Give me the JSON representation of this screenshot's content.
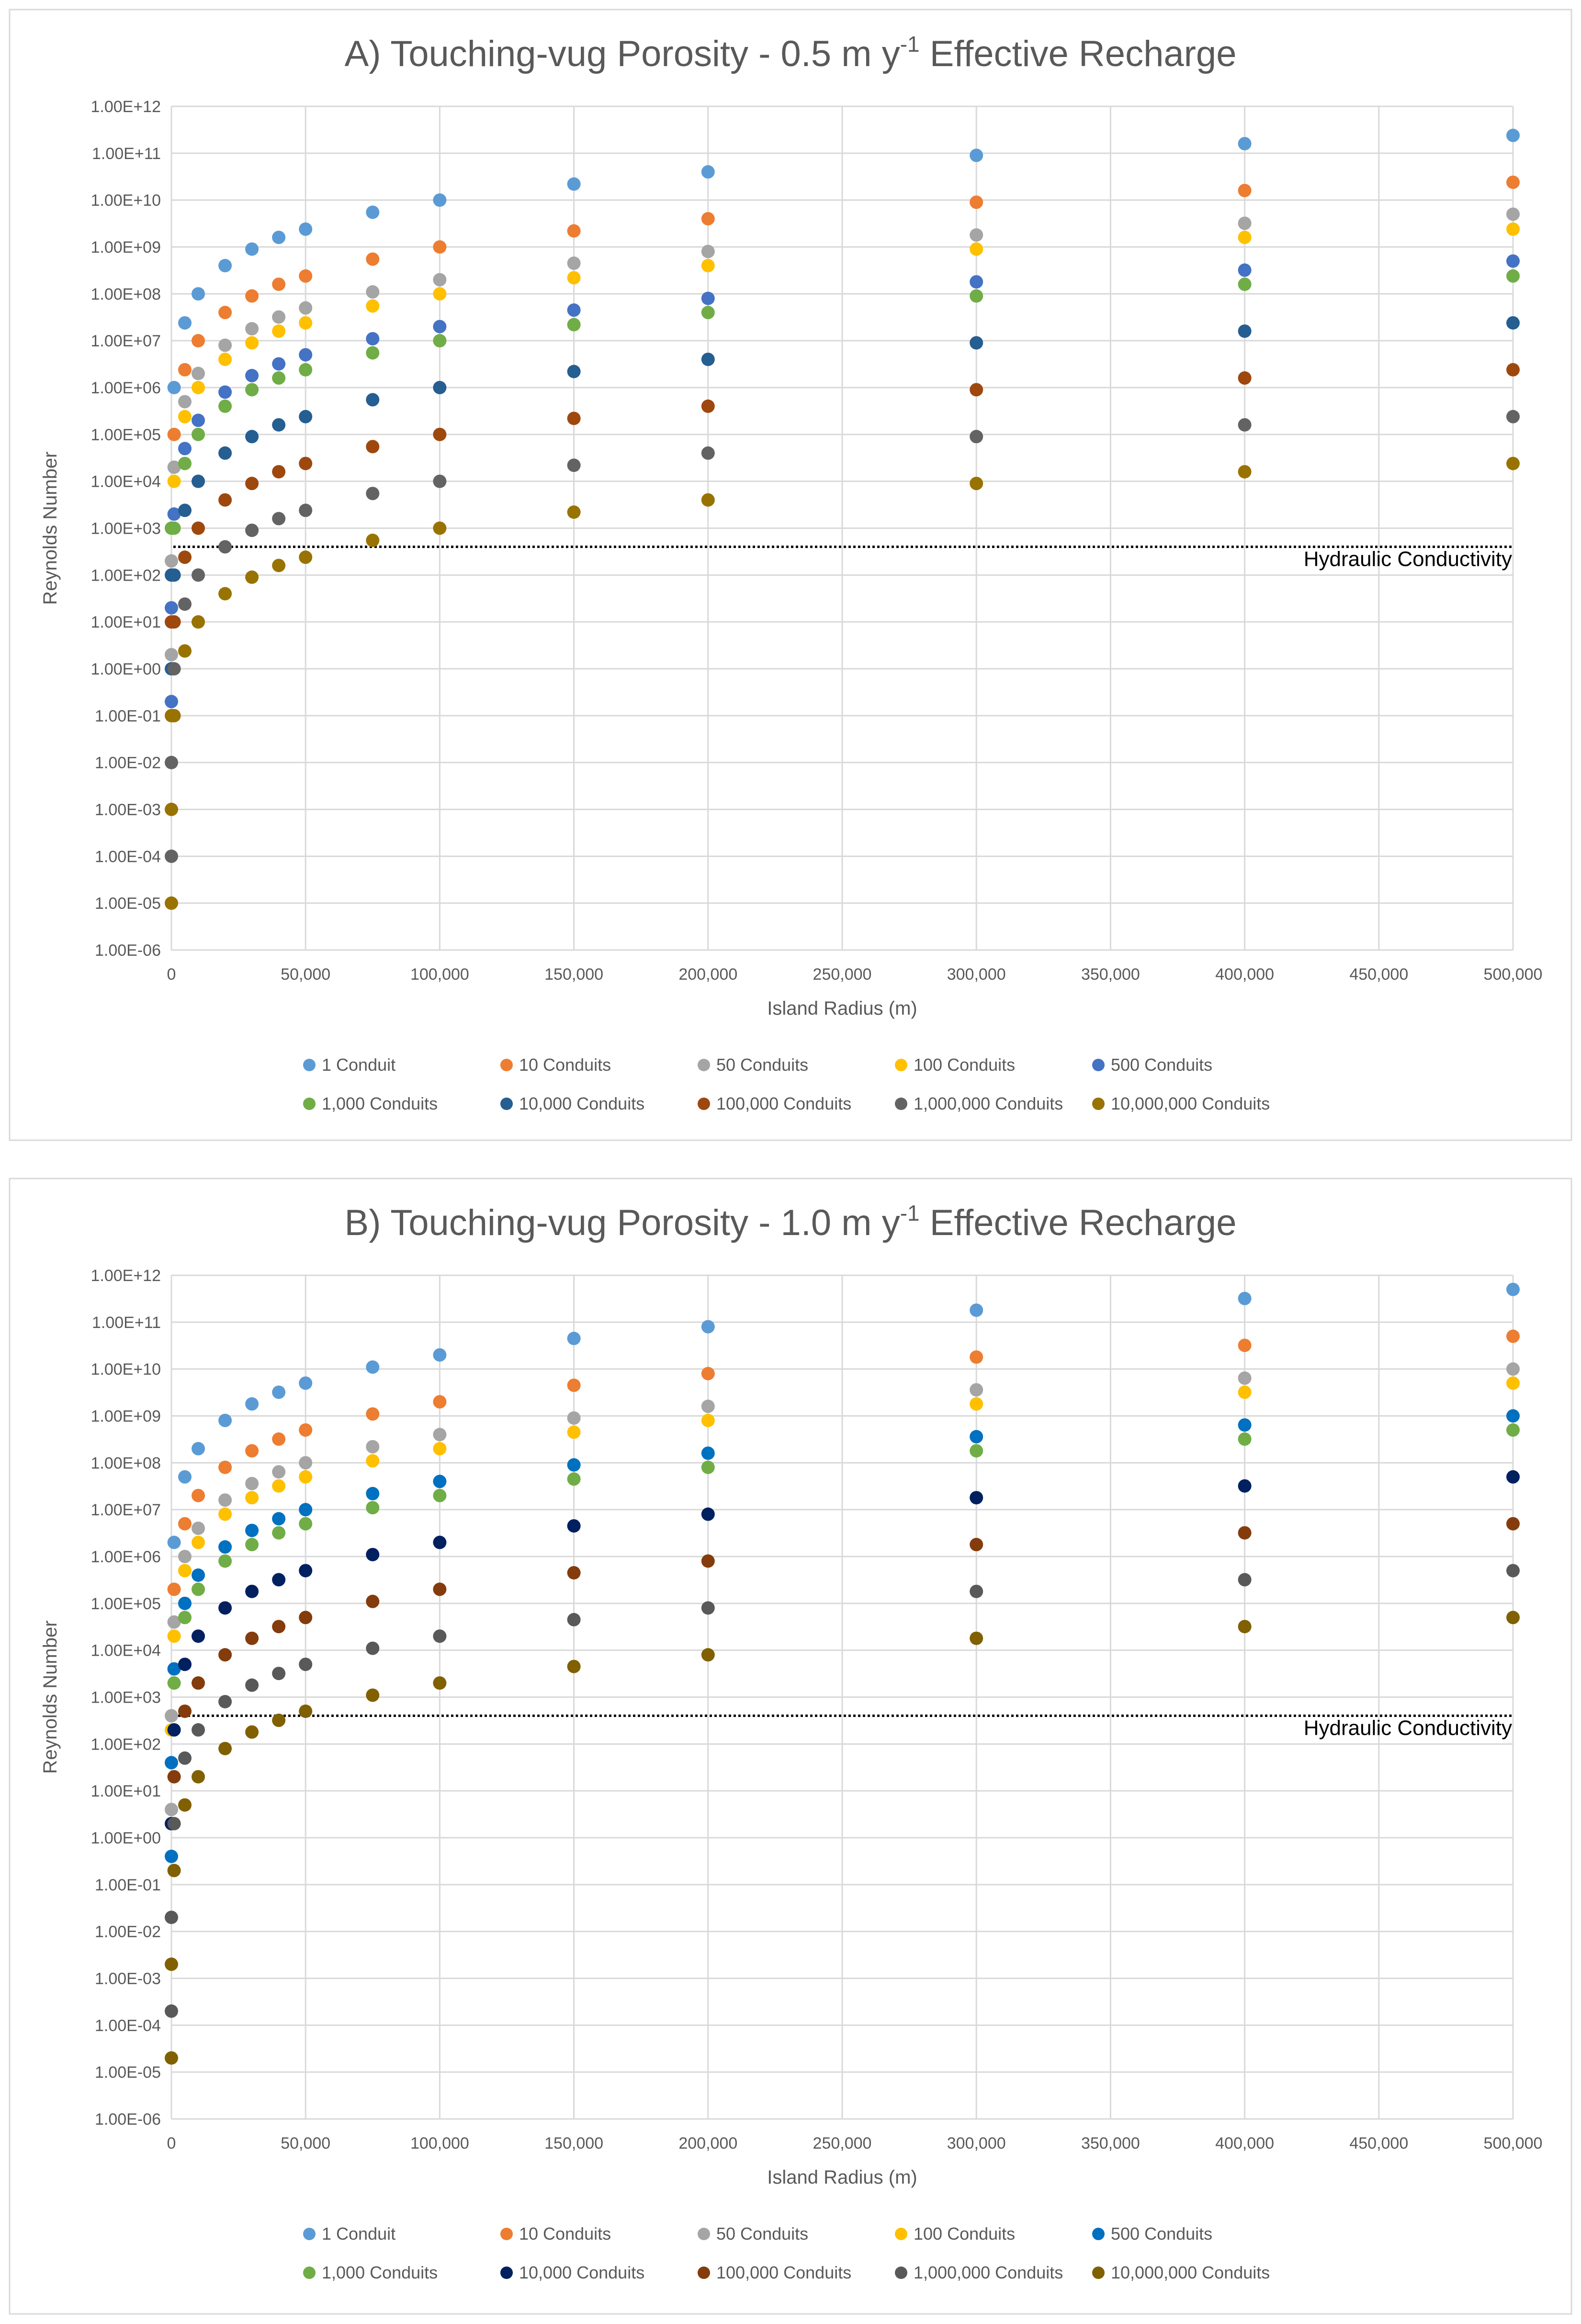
{
  "chart_data": [
    {
      "type": "scatter",
      "title_prefix": "A) Touching-vug Porosity -  0.5 m y",
      "title_superscript": "-1",
      "title_suffix": " Effective Recharge",
      "xlabel": "Island Radius (m)",
      "ylabel": "Reynolds Number",
      "xlim": [
        0,
        500000
      ],
      "ylim_log10": [
        -6,
        12
      ],
      "xticks": [
        0,
        50000,
        100000,
        150000,
        200000,
        250000,
        300000,
        350000,
        400000,
        450000,
        500000
      ],
      "xtick_labels": [
        "0",
        "50,000",
        "100,000",
        "150,000",
        "200,000",
        "250,000",
        "300,000",
        "350,000",
        "400,000",
        "450,000",
        "500,000"
      ],
      "ytick_labels": [
        "1.00E+12",
        "1.00E+11",
        "1.00E+10",
        "1.00E+09",
        "1.00E+08",
        "1.00E+07",
        "1.00E+06",
        "1.00E+05",
        "1.00E+04",
        "1.00E+03",
        "1.00E+02",
        "1.00E+01",
        "1.00E+00",
        "1.00E-01",
        "1.00E-02",
        "1.00E-03",
        "1.00E-04",
        "1.00E-05",
        "1.00E-06"
      ],
      "threshold": {
        "value": 400,
        "label": "Hydraulic Conductivity"
      },
      "x": [
        1000,
        5000,
        10000,
        20000,
        30000,
        40000,
        50000,
        75000,
        100000,
        150000,
        200000,
        300000,
        400000,
        500000
      ],
      "series": [
        {
          "name": "1 Conduit",
          "color": "#5b9bd5",
          "slope": 2,
          "x1": 1000,
          "values": [
            1000000.0,
            24000000.0,
            100000000.0,
            400000000.0,
            900000000.0,
            1600000000.0,
            2400000000.0,
            5500000000.0,
            10000000000.0,
            22000000000.0,
            40000000000.0,
            90000000000.0,
            160000000000.0,
            240000000000.0
          ]
        },
        {
          "name": "10 Conduits",
          "color": "#ed7d31",
          "slope": 2,
          "x1": 1000,
          "values": [
            100000.0,
            2400000.0,
            10000000.0,
            40000000.0,
            90000000.0,
            160000000.0,
            240000000.0,
            550000000.0,
            1000000000.0,
            2200000000.0,
            4000000000.0,
            9000000000.0,
            16000000000.0,
            24000000000.0
          ]
        },
        {
          "name": "50 Conduits",
          "color": "#a5a5a5",
          "slope": 2,
          "x1": 1000,
          "values": [
            20000.0,
            500000.0,
            2000000.0,
            8000000.0,
            18000000.0,
            32000000.0,
            50000000.0,
            110000000.0,
            200000000.0,
            450000000.0,
            800000000.0,
            1800000000.0,
            3200000000.0,
            5000000000.0
          ]
        },
        {
          "name": "100 Conduits",
          "color": "#ffc000",
          "slope": 2,
          "x1": 1000,
          "values": [
            10000.0,
            240000.0,
            1000000.0,
            4000000.0,
            9000000.0,
            16000000.0,
            24000000.0,
            55000000.0,
            100000000.0,
            220000000.0,
            400000000.0,
            900000000.0,
            1600000000.0,
            2400000000.0
          ]
        },
        {
          "name": "500 Conduits",
          "color": "#4472c4",
          "slope": 2,
          "x1": 1000,
          "values": [
            2000.0,
            50000.0,
            200000.0,
            800000.0,
            1800000.0,
            3200000.0,
            5000000.0,
            11000000.0,
            20000000.0,
            45000000.0,
            80000000.0,
            180000000.0,
            320000000.0,
            500000000.0
          ]
        },
        {
          "name": "1,000 Conduits",
          "color": "#70ad47",
          "slope": 2,
          "x1": 1000,
          "values": [
            1000.0,
            24000.0,
            100000.0,
            400000.0,
            900000.0,
            1600000.0,
            2400000.0,
            5500000.0,
            10000000.0,
            22000000.0,
            40000000.0,
            90000000.0,
            160000000.0,
            240000000.0
          ]
        },
        {
          "name": "10,000 Conduits",
          "color": "#255e91",
          "slope": 2,
          "x1": 1000,
          "values": [
            100.0,
            2400.0,
            10000.0,
            40000.0,
            90000.0,
            160000.0,
            240000.0,
            550000.0,
            1000000.0,
            2200000.0,
            4000000.0,
            9000000.0,
            16000000.0,
            24000000.0
          ]
        },
        {
          "name": "100,000 Conduits",
          "color": "#9e480e",
          "slope": 2,
          "x1": 1000,
          "values": [
            10.0,
            240.0,
            1000.0,
            4000.0,
            9000.0,
            16000.0,
            24000.0,
            55000.0,
            100000.0,
            220000.0,
            400000.0,
            900000.0,
            1600000.0,
            2400000.0
          ]
        },
        {
          "name": "1,000,000 Conduits",
          "color": "#636363",
          "slope": 2,
          "x1": 1000,
          "values": [
            1,
            24.0,
            100.0,
            400.0,
            900.0,
            1600.0,
            2400.0,
            5500.0,
            10000.0,
            22000.0,
            40000.0,
            90000.0,
            160000.0,
            240000.0
          ]
        },
        {
          "name": "10,000,000 Conduits",
          "color": "#997300",
          "slope": 2,
          "x1": 1000,
          "values": [
            0.1,
            2.4,
            10.0,
            40.0,
            90.0,
            160.0,
            240.0,
            550.0,
            1000.0,
            2200.0,
            4000.0,
            9000.0,
            16000.0,
            24000.0
          ]
        }
      ],
      "near_zero_points": [
        {
          "series": "50 Conduits",
          "x": 0,
          "y": 200
        },
        {
          "series": "50 Conduits",
          "x": 0,
          "y": 2
        },
        {
          "series": "500 Conduits",
          "x": 0,
          "y": 20
        },
        {
          "series": "500 Conduits",
          "x": 0,
          "y": 0.2
        },
        {
          "series": "1,000 Conduits",
          "x": 0,
          "y": 1000
        },
        {
          "series": "10,000 Conduits",
          "x": 0,
          "y": 100
        },
        {
          "series": "10,000 Conduits",
          "x": 0,
          "y": 1
        },
        {
          "series": "100,000 Conduits",
          "x": 0,
          "y": 10
        },
        {
          "series": "1,000,000 Conduits",
          "x": 0,
          "y": 0.01
        },
        {
          "series": "1,000,000 Conduits",
          "x": 0,
          "y": 0.0001
        },
        {
          "series": "10,000,000 Conduits",
          "x": 0,
          "y": 0.1
        },
        {
          "series": "10,000,000 Conduits",
          "x": 0,
          "y": 0.001
        },
        {
          "series": "10,000,000 Conduits",
          "x": 0,
          "y": 1e-05
        }
      ]
    },
    {
      "type": "scatter",
      "title_prefix": "B) Touching-vug Porosity -  1.0 m y",
      "title_superscript": "-1",
      "title_suffix": " Effective Recharge",
      "xlabel": "Island Radius (m)",
      "ylabel": "Reynolds Number",
      "xlim": [
        0,
        500000
      ],
      "ylim_log10": [
        -6,
        12
      ],
      "xticks": [
        0,
        50000,
        100000,
        150000,
        200000,
        250000,
        300000,
        350000,
        400000,
        450000,
        500000
      ],
      "xtick_labels": [
        "0",
        "50,000",
        "100,000",
        "150,000",
        "200,000",
        "250,000",
        "300,000",
        "350,000",
        "400,000",
        "450,000",
        "500,000"
      ],
      "ytick_labels": [
        "1.00E+12",
        "1.00E+11",
        "1.00E+10",
        "1.00E+09",
        "1.00E+08",
        "1.00E+07",
        "1.00E+06",
        "1.00E+05",
        "1.00E+04",
        "1.00E+03",
        "1.00E+02",
        "1.00E+01",
        "1.00E+00",
        "1.00E-01",
        "1.00E-02",
        "1.00E-03",
        "1.00E-04",
        "1.00E-05",
        "1.00E-06"
      ],
      "threshold": {
        "value": 400,
        "label": "Hydraulic Conductivity"
      },
      "x": [
        1000,
        5000,
        10000,
        20000,
        30000,
        40000,
        50000,
        75000,
        100000,
        150000,
        200000,
        300000,
        400000,
        500000
      ],
      "series": [
        {
          "name": "1 Conduit",
          "color": "#5b9bd5",
          "values": [
            2000000.0,
            50000000.0,
            200000000.0,
            800000000.0,
            1800000000.0,
            3200000000.0,
            5000000000.0,
            11000000000.0,
            20000000000.0,
            45000000000.0,
            80000000000.0,
            180000000000.0,
            320000000000.0,
            500000000000.0
          ]
        },
        {
          "name": "10 Conduits",
          "color": "#ed7d31",
          "values": [
            200000.0,
            5000000.0,
            20000000.0,
            80000000.0,
            180000000.0,
            320000000.0,
            500000000.0,
            1100000000.0,
            2000000000.0,
            4500000000.0,
            8000000000.0,
            18000000000.0,
            32000000000.0,
            50000000000.0
          ]
        },
        {
          "name": "50 Conduits",
          "color": "#a5a5a5",
          "values": [
            40000.0,
            1000000.0,
            4000000.0,
            16000000.0,
            36000000.0,
            64000000.0,
            100000000.0,
            220000000.0,
            400000000.0,
            900000000.0,
            1600000000.0,
            3600000000.0,
            6400000000.0,
            10000000000.0
          ]
        },
        {
          "name": "100 Conduits",
          "color": "#ffc000",
          "values": [
            20000.0,
            500000.0,
            2000000.0,
            8000000.0,
            18000000.0,
            32000000.0,
            50000000.0,
            110000000.0,
            200000000.0,
            450000000.0,
            800000000.0,
            1800000000.0,
            3200000000.0,
            5000000000.0
          ]
        },
        {
          "name": "500 Conduits",
          "color": "#0070c0",
          "values": [
            4000.0,
            100000.0,
            400000.0,
            1600000.0,
            3600000.0,
            6400000.0,
            10000000.0,
            22000000.0,
            40000000.0,
            90000000.0,
            160000000.0,
            360000000.0,
            640000000.0,
            1000000000.0
          ]
        },
        {
          "name": "1,000 Conduits",
          "color": "#70ad47",
          "values": [
            2000.0,
            50000.0,
            200000.0,
            800000.0,
            1800000.0,
            3200000.0,
            5000000.0,
            11000000.0,
            20000000.0,
            45000000.0,
            80000000.0,
            180000000.0,
            320000000.0,
            500000000.0
          ]
        },
        {
          "name": "10,000 Conduits",
          "color": "#002060",
          "values": [
            200.0,
            5000.0,
            20000.0,
            80000.0,
            180000.0,
            320000.0,
            500000.0,
            1100000.0,
            2000000.0,
            4500000.0,
            8000000.0,
            18000000.0,
            32000000.0,
            50000000.0
          ]
        },
        {
          "name": "100,000 Conduits",
          "color": "#843c0c",
          "values": [
            20.0,
            500.0,
            2000.0,
            8000.0,
            18000.0,
            32000.0,
            50000.0,
            110000.0,
            200000.0,
            450000.0,
            800000.0,
            1800000.0,
            3200000.0,
            5000000.0
          ]
        },
        {
          "name": "1,000,000 Conduits",
          "color": "#595959",
          "values": [
            2,
            50.0,
            200.0,
            800.0,
            1800.0,
            3200.0,
            5000.0,
            11000.0,
            20000.0,
            45000.0,
            80000.0,
            180000.0,
            320000.0,
            500000.0
          ]
        },
        {
          "name": "10,000,000 Conduits",
          "color": "#806000",
          "values": [
            0.2,
            5,
            20.0,
            80.0,
            180.0,
            320.0,
            500.0,
            1100.0,
            2000.0,
            4500.0,
            8000.0,
            18000.0,
            32000.0,
            50000.0
          ]
        }
      ],
      "near_zero_points": [
        {
          "series": "50 Conduits",
          "x": 0,
          "y": 400
        },
        {
          "series": "50 Conduits",
          "x": 0,
          "y": 4
        },
        {
          "series": "100 Conduits",
          "x": 0,
          "y": 200
        },
        {
          "series": "500 Conduits",
          "x": 0,
          "y": 40
        },
        {
          "series": "500 Conduits",
          "x": 0,
          "y": 0.4
        },
        {
          "series": "10,000 Conduits",
          "x": 0,
          "y": 2
        },
        {
          "series": "1,000,000 Conduits",
          "x": 0,
          "y": 0.02
        },
        {
          "series": "1,000,000 Conduits",
          "x": 0,
          "y": 0.0002
        },
        {
          "series": "10,000,000 Conduits",
          "x": 0,
          "y": 0.002
        },
        {
          "series": "10,000,000 Conduits",
          "x": 0,
          "y": 2e-05
        }
      ]
    }
  ]
}
